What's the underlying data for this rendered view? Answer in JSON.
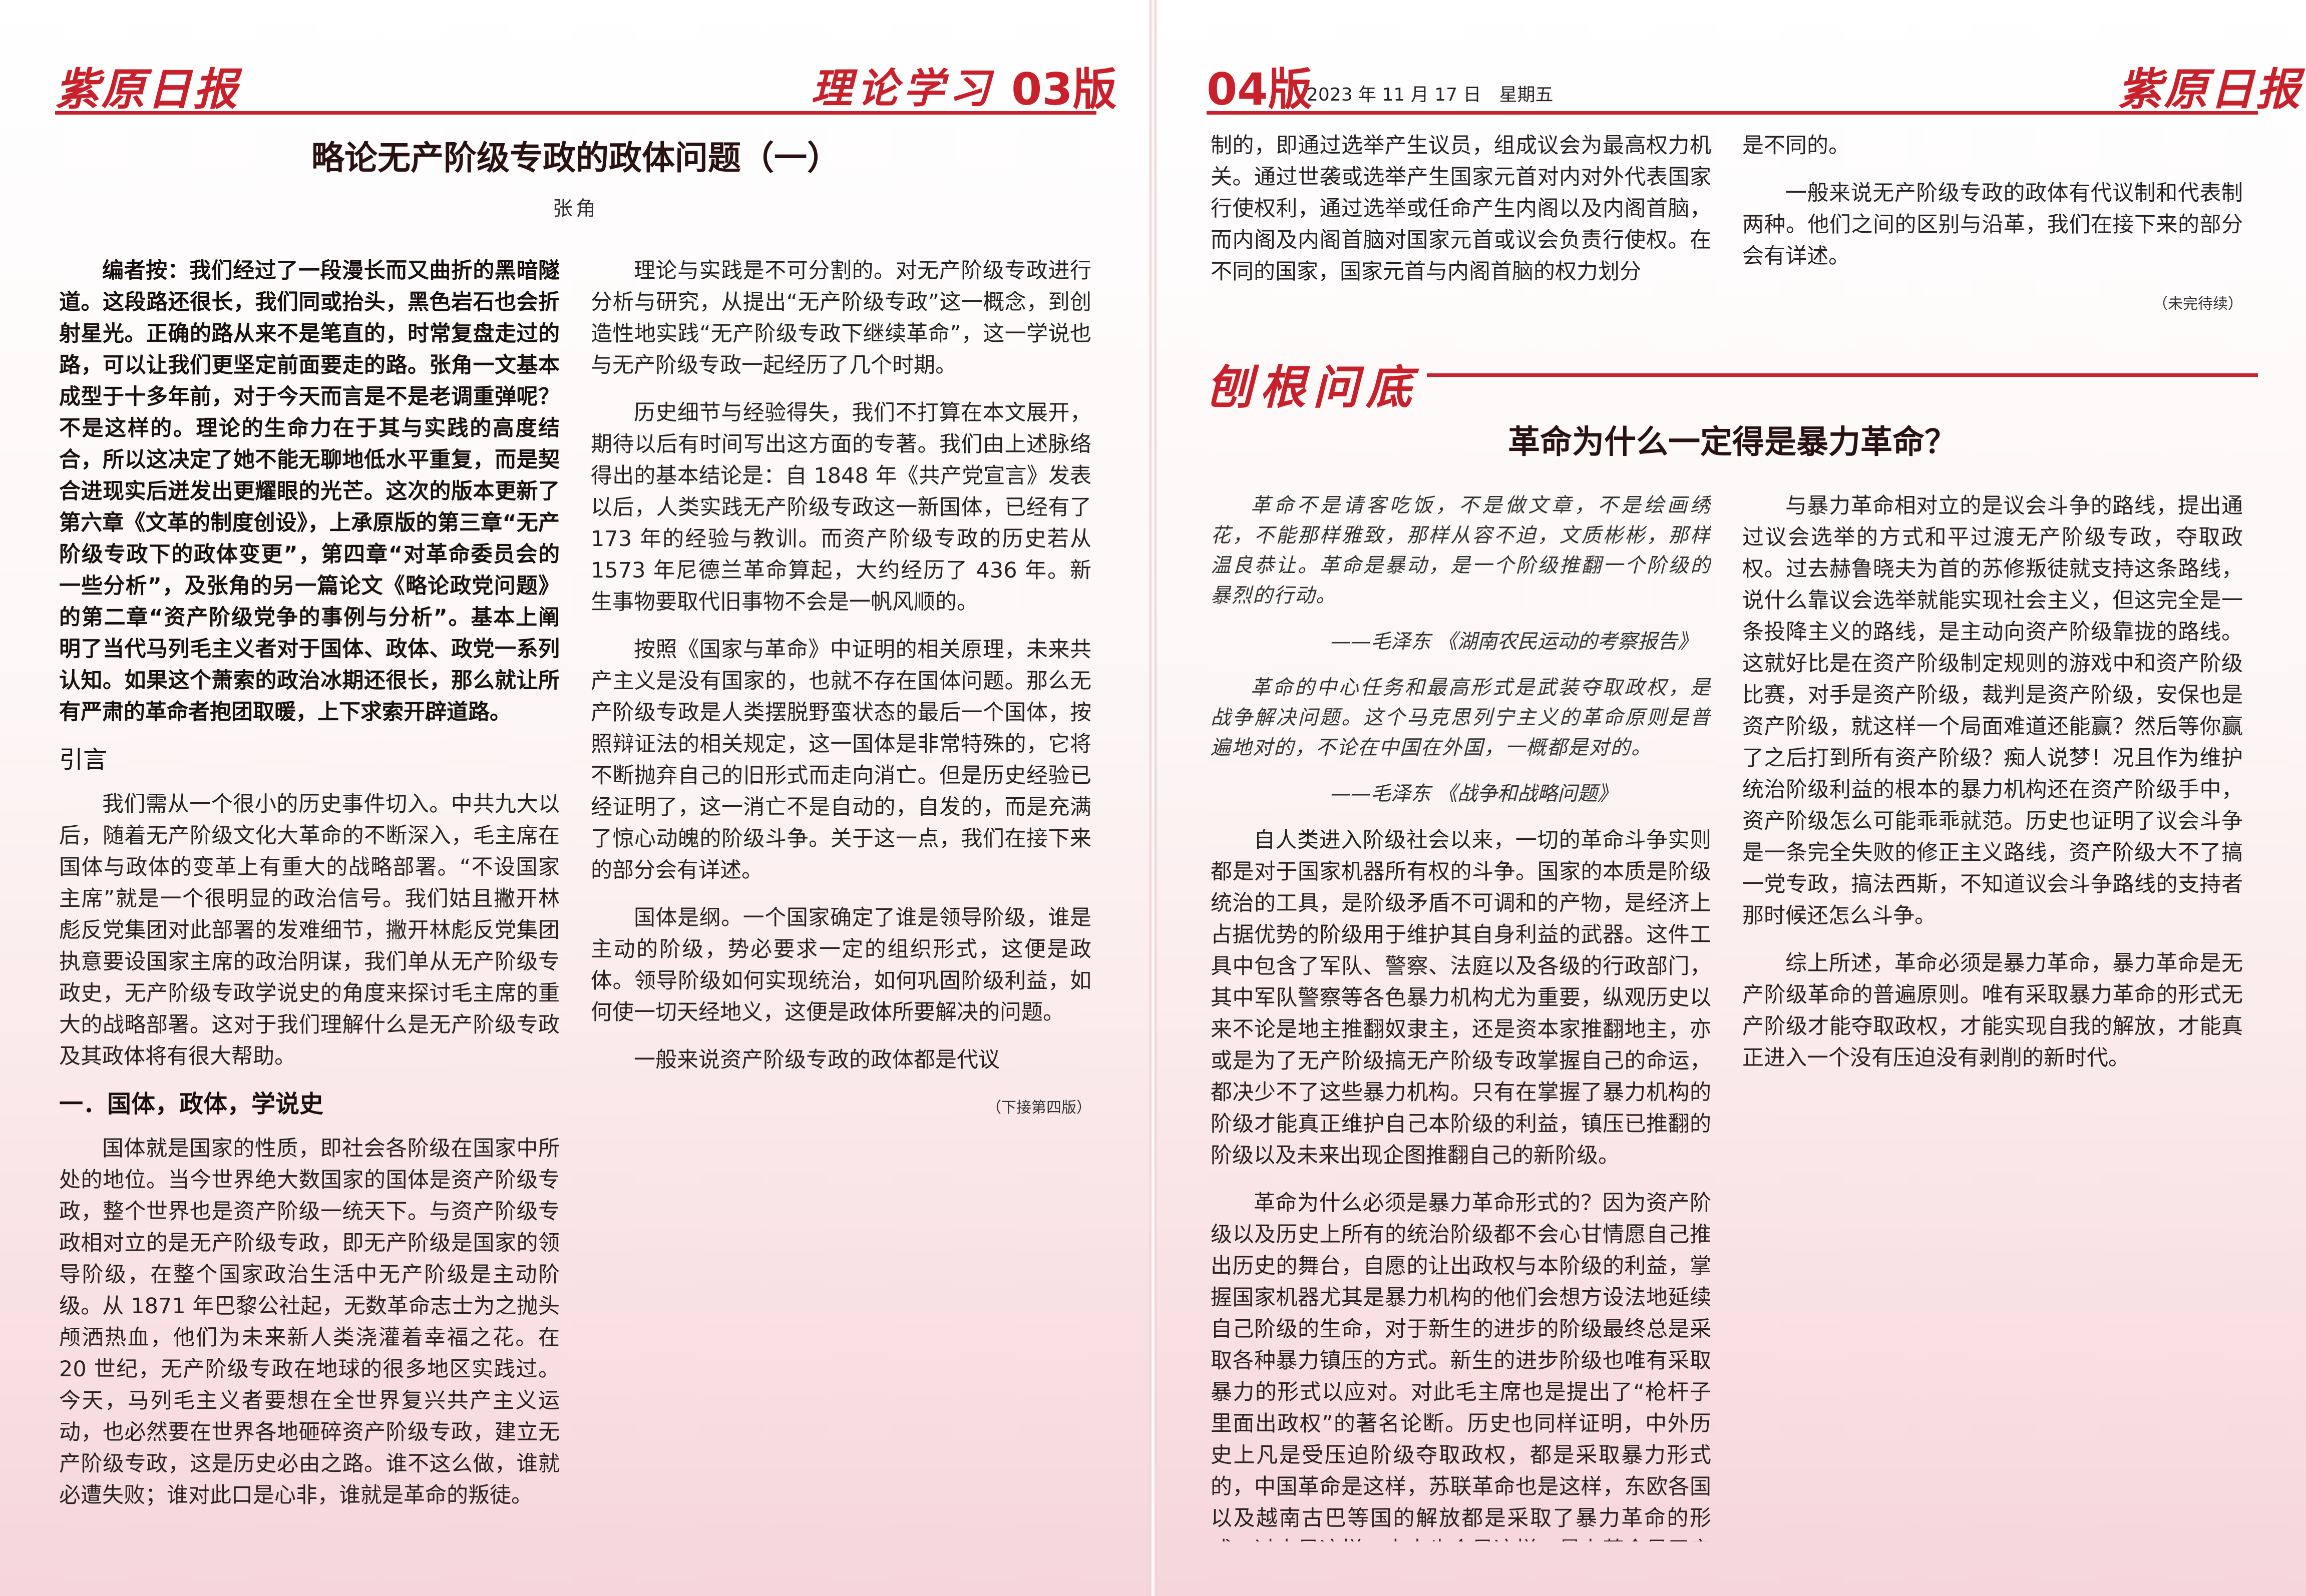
{
  "left_page": {
    "masthead": "紫原日报",
    "section": "理论学习",
    "edition": "03版",
    "title": "略论无产阶级专政的政体问题（一）",
    "author": "张角",
    "editor_note": "编者按：我们经过了一段漫长而又曲折的黑暗隧道。这段路还很长，我们同或抬头，黑色岩石也会折射星光。正确的路从来不是笔直的，时常复盘走过的路，可以让我们更坚定前面要走的路。张角一文基本成型于十多年前，对于今天而言是不是老调重弹呢？不是这样的。理论的生命力在于其与实践的高度结合，所以这决定了她不能无聊地低水平重复，而是契合进现实后迸发出更耀眼的光芒。这次的版本更新了第六章《文革的制度创设》，上承原版的第三章“无产阶级专政下的政体变更”，第四章“对革命委员会的一些分析”，及张角的另一篇论文《略论政党问题》的第二章“资产阶级党争的事例与分析”。基本上阐明了当代马列毛主义者对于国体、政体、政党一系列认知。如果这个萧索的政治冰期还很长，那么就让所有严肃的革命者抱团取暖，上下求索开辟道路。",
    "h_intro": "引言",
    "intro": "我们需从一个很小的历史事件切入。中共九大以后，随着无产阶级文化大革命的不断深入，毛主席在国体与政体的变革上有重大的战略部署。“不设国家主席”就是一个很明显的政治信号。我们姑且撇开林彪反党集团对此部署的发难细节，撇开林彪反党集团执意要设国家主席的政治阴谋，我们单从无产阶级专政史，无产阶级专政学说史的角度来探讨毛主席的重大的战略部署。这对于我们理解什么是无产阶级专政及其政体将有很大帮助。",
    "h_one": "一．国体，政体，学说史",
    "p1": "国体就是国家的性质，即社会各阶级在国家中所处的地位。当今世界绝大数国家的国体是资产阶级专政，整个世界也是资产阶级一统天下。与资产阶级专政相对立的是无产阶级专政，即无产阶级是国家的领导阶级，在整个国家政治生活中无产阶级是主动阶级。从 1871 年巴黎公社起，无数革命志士为之抛头颅洒热血，他们为未来新人类浇灌着幸福之花。在 20 世纪，无产阶级专政在地球的很多地区实践过。今天，马列毛主义者要想在全世界复兴共产主义运动，也必然要在世界各地砸碎资产阶级专政，建立无产阶级专政，这是历史必由之路。谁不这么做，谁就必遭失败；谁对此口是心非，谁就是革命的叛徒。",
    "p2": "理论与实践是不可分割的。对无产阶级专政进行分析与研究，从提出“无产阶级专政”这一概念，到创造性地实践“无产阶级专政下继续革命”，这一学说也与无产阶级专政一起经历了几个时期。",
    "p3": "历史细节与经验得失，我们不打算在本文展开，期待以后有时间写出这方面的专著。我们由上述脉络得出的基本结论是：自 1848 年《共产党宣言》发表以后，人类实践无产阶级专政这一新国体，已经有了 173 年的经验与教训。而资产阶级专政的历史若从 1573 年尼德兰革命算起，大约经历了 436 年。新生事物要取代旧事物不会是一帆风顺的。",
    "p4": "按照《国家与革命》中证明的相关原理，未来共产主义是没有国家的，也就不存在国体问题。那么无产阶级专政是人类摆脱野蛮状态的最后一个国体，按照辩证法的相关规定，这一国体是非常特殊的，它将不断抛弃自己的旧形式而走向消亡。但是历史经验已经证明了，这一消亡不是自动的，自发的，而是充满了惊心动魄的阶级斗争。关于这一点，我们在接下来的部分会有详述。",
    "p5": "国体是纲。一个国家确定了谁是领导阶级，谁是主动的阶级，势必要求一定的组织形式，这便是政体。领导阶级如何实现统治，如何巩固阶级利益，如何使一切天经地义，这便是政体所要解决的问题。",
    "p6": "一般来说资产阶级专政的政体都是代议",
    "continued": "（下接第四版）"
  },
  "right_page": {
    "edition": "04版",
    "date": "2023 年 11 月 17 日　星期五",
    "masthead": "紫原日报",
    "cont_a": "制的，即通过选举产生议员，组成议会为最高权力机关。通过世袭或选举产生国家元首对内对外代表国家行使权利，通过选举或任命产生内阁以及内阁首脑，而内阁及内阁首脑对国家元首或议会负责行使权。在不同的国家，国家元首与内阁首脑的权力划分",
    "cont_b": "是不同的。",
    "cont_c": "一般来说无产阶级专政的政体有代议制和代表制两种。他们之间的区别与沿革，我们在接下来的部分会有详述。",
    "tbc": "（未完待续）",
    "column": "刨根问底",
    "title2": "革命为什么一定得是暴力革命？",
    "q1": "革命不是请客吃饭，不是做文章，不是绘画绣花，不能那样雅致，那样从容不迫，文质彬彬，那样温良恭让。革命是暴动，是一个阶级推翻一个阶级的暴烈的行动。",
    "q1_src": "——毛泽东 《湖南农民运动的考察报告》",
    "q2": "革命的中心任务和最高形式是武装夺取政权，是战争解决问题。这个马克思列宁主义的革命原则是普遍地对的，不论在中国在外国，一概都是对的。",
    "q2_src": "——毛泽东 《战争和战略问题》",
    "r1": "自人类进入阶级社会以来，一切的革命斗争实则都是对于国家机器所有权的斗争。国家的本质是阶级统治的工具，是阶级矛盾不可调和的产物，是经济上占据优势的阶级用于维护其自身利益的武器。这件工具中包含了军队、警察、法庭以及各级的行政部门，其中军队警察等各色暴力机构尤为重要，纵观历史以来不论是地主推翻奴隶主，还是资本家推翻地主，亦或是为了无产阶级搞无产阶级专政掌握自己的命运，都决少不了这些暴力机构。只有在掌握了暴力机构的阶级才能真正维护自己本阶级的利益，镇压已推翻的阶级以及未来出现企图推翻自己的新阶级。",
    "r2": "革命为什么必须是暴力革命形式的？因为资产阶级以及历史上所有的统治阶级都不会心甘情愿自己推出历史的舞台，自愿的让出政权与本阶级的利益，掌握国家机器尤其是暴力机构的他们会想方设法地延续自己阶级的生命，对于新生的进步的阶级最终总是采取各种暴力镇压的方式。新生的进步阶级也唯有采取暴力的形式以应对。对此毛主席也是提出了“枪杆子里面出政权”的著名论断。历史也同样证明，中外历史上凡是受压迫阶级夺取政权，都是采取暴力形式的，中国革命是这样，苏联革命也是这样，东欧各国以及越南古巴等国的解放都是采取了暴力革命的形式，过去是这样，未来也会是这样，暴力革命是无产阶级革命的普遍原则。",
    "r3": "与暴力革命相对立的是议会斗争的路线，提出通过议会选举的方式和平过渡无产阶级专政，夺取政权。过去赫鲁晓夫为首的苏修叛徒就支持这条路线，说什么靠议会选举就能实现社会主义，但这完全是一条投降主义的路线，是主动向资产阶级靠拢的路线。这就好比是在资产阶级制定规则的游戏中和资产阶级比赛，对手是资产阶级，裁判是资产阶级，安保也是资产阶级，就这样一个局面难道还能赢？然后等你赢了之后打到所有资产阶级？痴人说梦！况且作为维护统治阶级利益的根本的暴力机构还在资产阶级手中，资产阶级怎么可能乖乖就范。历史也证明了议会斗争是一条完全失败的修正主义路线，资产阶级大不了搞一党专政，搞法西斯，不知道议会斗争路线的支持者那时候还怎么斗争。",
    "r4": "综上所述，革命必须是暴力革命，暴力革命是无产阶级革命的普遍原则。唯有采取暴力革命的形式无产阶级才能夺取政权，才能实现自我的解放，才能真正进入一个没有压迫没有剥削的新时代。"
  }
}
